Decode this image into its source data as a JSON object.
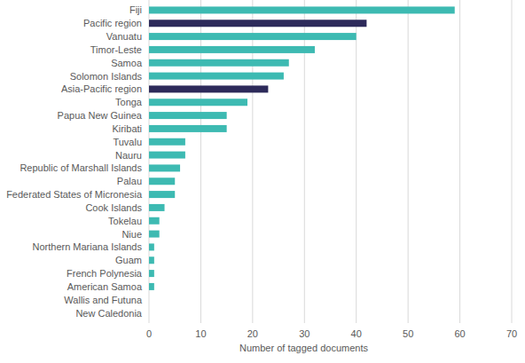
{
  "chart_data": {
    "type": "bar",
    "orientation": "horizontal",
    "x_label": "Number of tagged documents",
    "categories": [
      "Fiji",
      "Pacific region",
      "Vanuatu",
      "Timor-Leste",
      "Samoa",
      "Solomon Islands",
      "Asia-Pacific region",
      "Tonga",
      "Papua New Guinea",
      "Kiribati",
      "Tuvalu",
      "Nauru",
      "Republic of Marshall Islands",
      "Palau",
      "Federated States of Micronesia",
      "Cook Islands",
      "Tokelau",
      "Niue",
      "Northern Mariana Islands",
      "Guam",
      "French Polynesia",
      "American Samoa",
      "Wallis and Futuna",
      "New Caledonia"
    ],
    "values": [
      59,
      42,
      40,
      32,
      27,
      26,
      23,
      19,
      15,
      15,
      7,
      7,
      6,
      5,
      5,
      3,
      2,
      2,
      1,
      1,
      1,
      1,
      0,
      0
    ],
    "colors": [
      "#3dbab2",
      "#2d2a5a",
      "#3dbab2",
      "#3dbab2",
      "#3dbab2",
      "#3dbab2",
      "#2d2a5a",
      "#3dbab2",
      "#3dbab2",
      "#3dbab2",
      "#3dbab2",
      "#3dbab2",
      "#3dbab2",
      "#3dbab2",
      "#3dbab2",
      "#3dbab2",
      "#3dbab2",
      "#3dbab2",
      "#3dbab2",
      "#3dbab2",
      "#3dbab2",
      "#3dbab2",
      "#3dbab2",
      "#3dbab2"
    ],
    "xlim": [
      0,
      70
    ],
    "xticks": [
      0,
      10,
      20,
      30,
      40,
      50,
      60,
      70
    ],
    "grid": true
  }
}
